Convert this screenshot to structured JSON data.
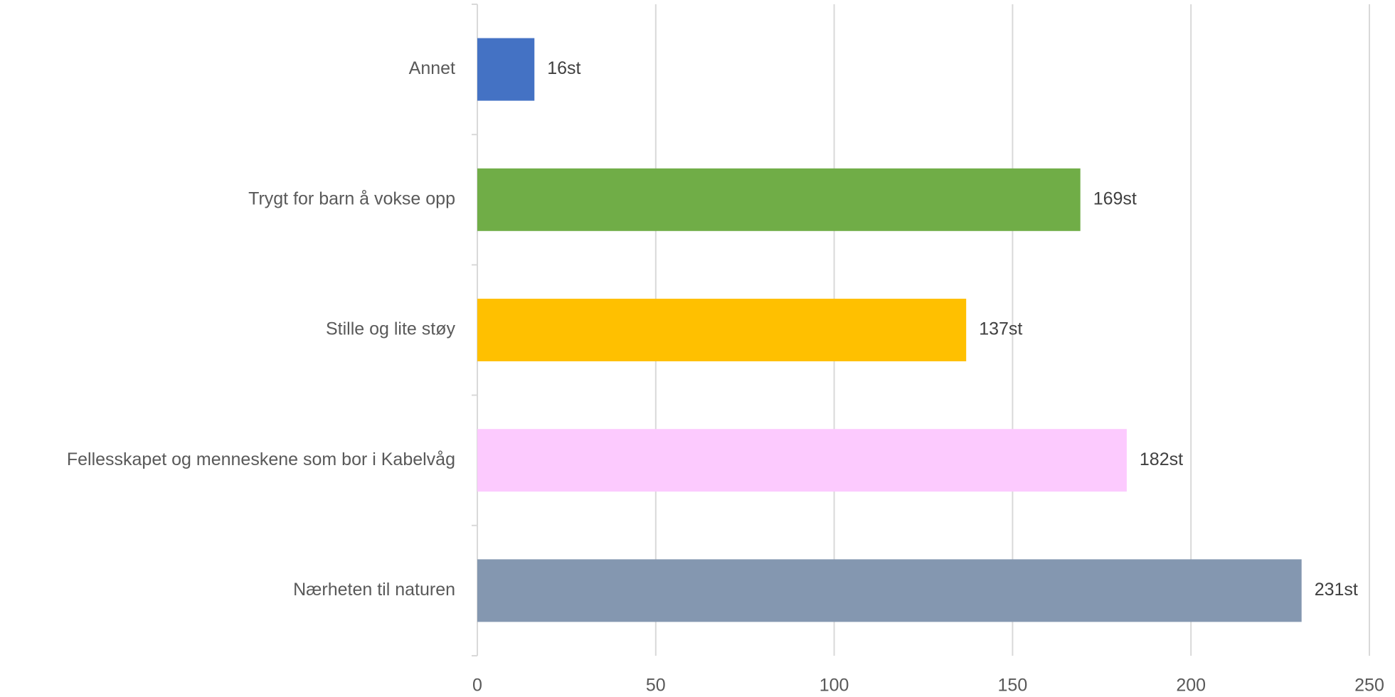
{
  "chart_data": {
    "type": "bar",
    "orientation": "horizontal",
    "categories": [
      "Annet",
      "Trygt for barn å vokse opp",
      "Stille og lite støy",
      "Fellesskapet og menneskene som bor i Kabelvåg",
      "Nærheten til naturen"
    ],
    "values": [
      16,
      169,
      137,
      182,
      231
    ],
    "value_labels": [
      "16st",
      "169st",
      "137st",
      "182st",
      "231st"
    ],
    "colors": [
      "#4472c4",
      "#70ad47",
      "#ffc000",
      "#fccafe",
      "#8497b0"
    ],
    "xlim": [
      0,
      250
    ],
    "xticks": [
      0,
      50,
      100,
      150,
      200,
      250
    ],
    "grid": true
  }
}
